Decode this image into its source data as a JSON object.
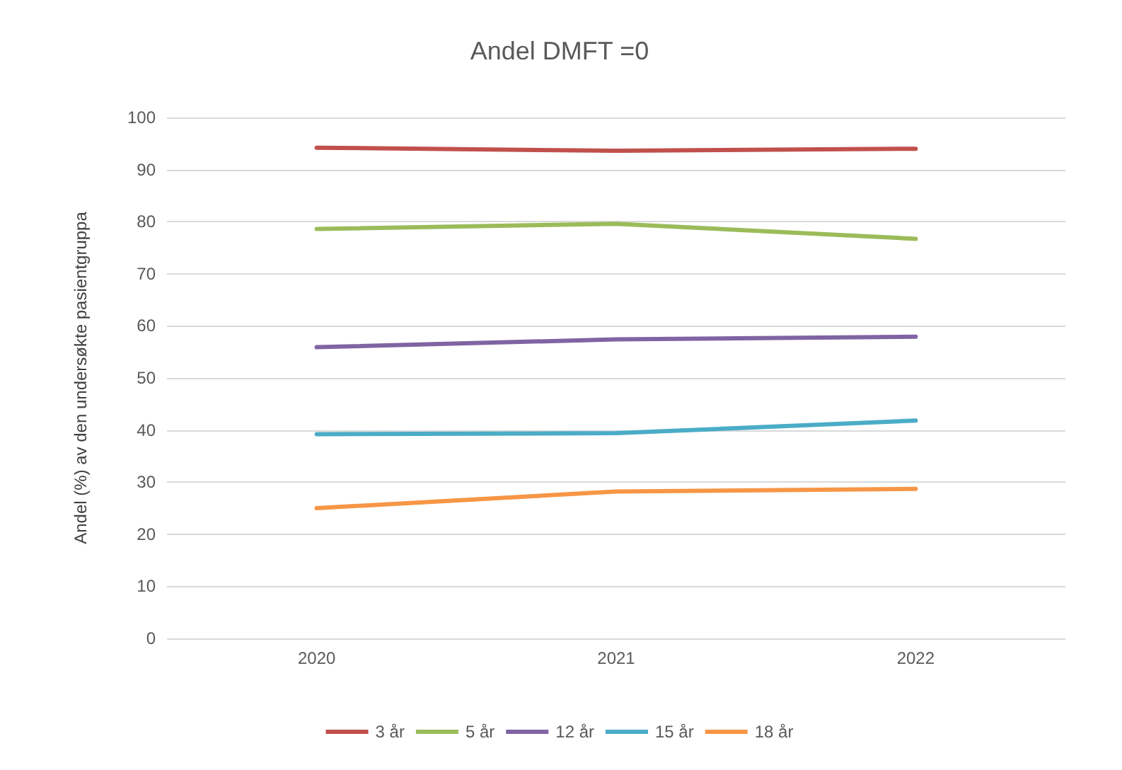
{
  "chart_data": {
    "type": "line",
    "title": "Andel DMFT =0",
    "ylabel": "Andel (%) av den undersøkte pasientgruppa",
    "categories": [
      "2020",
      "2021",
      "2022"
    ],
    "series": [
      {
        "name": "3 år",
        "color": "#c0504d",
        "values": [
          94.2,
          93.6,
          94.0
        ]
      },
      {
        "name": "5 år",
        "color": "#9bbb59",
        "values": [
          78.6,
          79.6,
          76.7
        ]
      },
      {
        "name": "12 år",
        "color": "#8064a2",
        "values": [
          55.9,
          57.4,
          57.9
        ]
      },
      {
        "name": "15 år",
        "color": "#4bacc6",
        "values": [
          39.2,
          39.4,
          41.8
        ]
      },
      {
        "name": "18 år",
        "color": "#f79646",
        "values": [
          25.0,
          28.2,
          28.7
        ]
      }
    ],
    "ylim": [
      0,
      100
    ],
    "yticks": [
      0,
      10,
      20,
      30,
      40,
      50,
      60,
      70,
      80,
      90,
      100
    ],
    "grid": "y",
    "legend": "bottom",
    "marker": "none",
    "line_style": "solid"
  }
}
